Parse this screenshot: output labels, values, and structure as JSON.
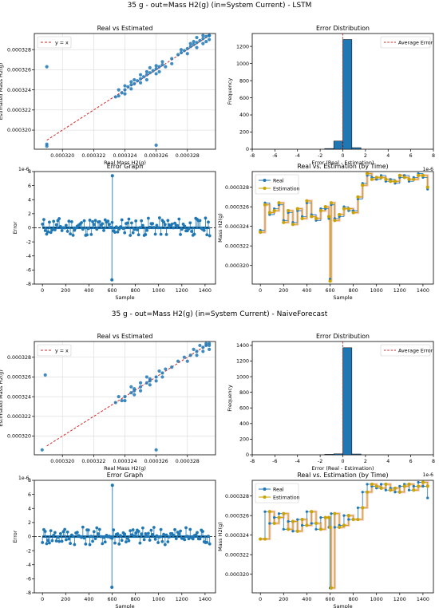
{
  "figures": [
    {
      "title": "35 g - out=Mass H2(g) (in=System Current) - LSTM",
      "panels": {
        "scatter": {
          "title": "Real vs Estimated",
          "xlabel": "Real Mass H2(g)",
          "ylabel": "Estimated Mass H2(g)",
          "legend": "y = x"
        },
        "hist": {
          "title": "Error Distribution",
          "xlabel": "Error (Real - Estimation)",
          "ylabel": "Frequency",
          "legend": "Average Error",
          "xexp": "1e-6"
        },
        "stem": {
          "title": "Error Graph",
          "xlabel": "Sample",
          "ylabel": "Error",
          "yexp": "1e-6"
        },
        "time": {
          "title": "Real vs. Estimation (by Time)",
          "xlabel": "Sample",
          "ylabel": "Mass H2(g)",
          "legend": [
            "Real",
            "Estimation"
          ]
        }
      }
    },
    {
      "title": "35 g - out=Mass H2(g) (in=System Current) - NaiveForecast",
      "panels": {
        "scatter": {
          "title": "Real vs Estimated",
          "xlabel": "Real Mass H2(g)",
          "ylabel": "Estimated Mass H2(g)",
          "legend": "y = x"
        },
        "hist": {
          "title": "Error Distribution",
          "xlabel": "Error (Real - Estimation)",
          "ylabel": "Frequency",
          "legend": "Average Error",
          "xexp": "1e-6"
        },
        "stem": {
          "title": "Error Graph",
          "xlabel": "Sample",
          "ylabel": "Error",
          "yexp": "1e-6"
        },
        "time": {
          "title": "Real vs. Estimation (by Time)",
          "xlabel": "Sample",
          "ylabel": "Mass H2(g)",
          "legend": [
            "Real",
            "Estimation"
          ]
        }
      }
    }
  ],
  "colors": {
    "blue": "#1f77b4",
    "orange": "#d62728",
    "gold": "#c8a400",
    "gridline": "#d9d9d9"
  },
  "chart_data": [
    {
      "type": "scatter",
      "title": "Real vs Estimated",
      "xlabel": "Real Mass H2(g)",
      "ylabel": "Estimated Mass H2(g)",
      "xlim": [
        0.0003182,
        0.0003298
      ],
      "ylim": [
        0.0003181,
        0.0003296
      ],
      "xticks": [
        "0.000320",
        "0.000322",
        "0.000324",
        "0.000326",
        "0.000328"
      ],
      "yticks": [
        "0.000320",
        "0.000322",
        "0.000324",
        "0.000326",
        "0.000328"
      ],
      "reference_line": "y = x",
      "points": [
        [
          0.000319,
          0.0003184
        ],
        [
          0.000319,
          0.0003186
        ],
        [
          0.000319,
          0.0003263
        ],
        [
          0.000326,
          0.0003185
        ],
        [
          0.0003234,
          0.0003233
        ],
        [
          0.0003236,
          0.0003234
        ],
        [
          0.0003238,
          0.0003237
        ],
        [
          0.000324,
          0.000324
        ],
        [
          0.0003242,
          0.0003243
        ],
        [
          0.0003244,
          0.0003245
        ],
        [
          0.0003246,
          0.0003246
        ],
        [
          0.0003248,
          0.0003249
        ],
        [
          0.000325,
          0.0003251
        ],
        [
          0.0003252,
          0.0003253
        ],
        [
          0.0003254,
          0.0003255
        ],
        [
          0.0003256,
          0.0003257
        ],
        [
          0.0003258,
          0.0003259
        ],
        [
          0.000326,
          0.0003261
        ],
        [
          0.0003262,
          0.0003263
        ],
        [
          0.0003264,
          0.0003265
        ],
        [
          0.000327,
          0.0003271
        ],
        [
          0.0003274,
          0.0003275
        ],
        [
          0.0003276,
          0.0003277
        ],
        [
          0.0003278,
          0.0003279
        ],
        [
          0.000328,
          0.0003281
        ],
        [
          0.0003282,
          0.0003283
        ],
        [
          0.0003284,
          0.0003285
        ],
        [
          0.0003286,
          0.0003287
        ],
        [
          0.0003288,
          0.0003289
        ],
        [
          0.000329,
          0.0003291
        ],
        [
          0.0003292,
          0.0003293
        ],
        [
          0.0003294,
          0.0003294
        ],
        [
          0.000324,
          0.0003236
        ],
        [
          0.000324,
          0.0003244
        ],
        [
          0.0003244,
          0.0003241
        ],
        [
          0.0003246,
          0.000325
        ],
        [
          0.000325,
          0.0003247
        ],
        [
          0.000325,
          0.0003255
        ],
        [
          0.0003254,
          0.000325
        ],
        [
          0.0003256,
          0.0003262
        ],
        [
          0.000326,
          0.0003256
        ],
        [
          0.000326,
          0.0003264
        ],
        [
          0.0003262,
          0.0003258
        ],
        [
          0.0003264,
          0.0003268
        ],
        [
          0.000328,
          0.0003276
        ],
        [
          0.0003282,
          0.0003286
        ],
        [
          0.0003286,
          0.0003282
        ],
        [
          0.0003286,
          0.0003292
        ],
        [
          0.000329,
          0.0003286
        ],
        [
          0.000329,
          0.0003294
        ],
        [
          0.0003292,
          0.0003288
        ],
        [
          0.0003294,
          0.000329
        ],
        [
          0.0003294,
          0.0003294
        ],
        [
          0.0003236,
          0.000324
        ],
        [
          0.0003244,
          0.0003248
        ],
        [
          0.0003254,
          0.0003258
        ],
        [
          0.0003266,
          0.0003263
        ],
        [
          0.000327,
          0.0003266
        ],
        [
          0.0003276,
          0.000328
        ],
        [
          0.0003284,
          0.0003288
        ]
      ]
    },
    {
      "type": "bar",
      "title": "Error Distribution",
      "xlabel": "Error (Real - Estimation)",
      "ylabel": "Frequency",
      "xlim": [
        -8,
        8
      ],
      "ylim": [
        0,
        1350
      ],
      "xticks": [
        -8,
        -6,
        -4,
        -2,
        0,
        2,
        4,
        6,
        8
      ],
      "yticks": [
        0,
        200,
        400,
        600,
        800,
        1000,
        1200
      ],
      "bins": [
        [
          -1.6,
          -0.8,
          8
        ],
        [
          -0.8,
          0,
          95
        ],
        [
          0,
          0.8,
          1280
        ],
        [
          0.8,
          1.6,
          18
        ]
      ],
      "average_error": 0.0
    },
    {
      "type": "scatter",
      "title": "Error Graph",
      "xlabel": "Sample",
      "ylabel": "Error",
      "xlim": [
        -70,
        1490
      ],
      "ylim": [
        -8,
        8
      ],
      "xticks": [
        0,
        200,
        400,
        600,
        800,
        1000,
        1200,
        1400
      ],
      "yticks": [
        -8,
        -6,
        -4,
        -2,
        0,
        2,
        4,
        6,
        8
      ],
      "spikes": [
        [
          598,
          -7.4
        ],
        [
          602,
          7.4
        ]
      ]
    },
    {
      "type": "line",
      "title": "Real vs. Estimation (by Time)",
      "xlabel": "Sample",
      "ylabel": "Mass H2(g)",
      "xlim": [
        -70,
        1490
      ],
      "ylim": [
        0.0003181,
        0.0003296
      ],
      "xticks": [
        0,
        200,
        400,
        600,
        800,
        1000,
        1200,
        1400
      ],
      "yticks": [
        "0.000320",
        "0.000322",
        "0.000324",
        "0.000326",
        "0.000328"
      ],
      "series": [
        {
          "name": "Real",
          "x": [
            0,
            40,
            80,
            120,
            160,
            200,
            240,
            280,
            320,
            360,
            400,
            440,
            480,
            520,
            560,
            590,
            600,
            610,
            640,
            680,
            720,
            760,
            800,
            840,
            880,
            920,
            960,
            1000,
            1040,
            1080,
            1120,
            1160,
            1200,
            1240,
            1280,
            1320,
            1360,
            1400,
            1440
          ],
          "y": [
            0.0003236,
            0.0003264,
            0.0003252,
            0.0003258,
            0.0003262,
            0.0003246,
            0.0003254,
            0.0003244,
            0.0003256,
            0.000325,
            0.0003264,
            0.0003252,
            0.0003246,
            0.0003258,
            0.0003258,
            0.0003248,
            0.0003186,
            0.0003262,
            0.0003248,
            0.000325,
            0.000326,
            0.0003256,
            0.0003256,
            0.0003268,
            0.0003284,
            0.0003292,
            0.000329,
            0.0003288,
            0.0003292,
            0.0003286,
            0.0003288,
            0.0003284,
            0.000329,
            0.0003292,
            0.0003286,
            0.000329,
            0.0003294,
            0.000329,
            0.0003278
          ]
        },
        {
          "name": "Estimation",
          "x": [
            0,
            40,
            80,
            120,
            160,
            200,
            240,
            280,
            320,
            360,
            400,
            440,
            480,
            520,
            560,
            590,
            600,
            610,
            640,
            680,
            720,
            760,
            800,
            840,
            880,
            920,
            960,
            1000,
            1040,
            1080,
            1120,
            1160,
            1200,
            1240,
            1280,
            1320,
            1360,
            1400,
            1440
          ],
          "y": [
            0.0003234,
            0.0003262,
            0.0003254,
            0.0003256,
            0.0003264,
            0.0003244,
            0.0003256,
            0.0003242,
            0.0003258,
            0.0003248,
            0.0003266,
            0.000325,
            0.0003248,
            0.0003256,
            0.000326,
            0.000325,
            0.0003184,
            0.0003264,
            0.0003246,
            0.0003252,
            0.0003258,
            0.0003258,
            0.0003254,
            0.000327,
            0.0003282,
            0.0003294,
            0.0003288,
            0.000329,
            0.000329,
            0.0003288,
            0.0003286,
            0.0003286,
            0.0003292,
            0.000329,
            0.0003288,
            0.0003288,
            0.0003292,
            0.0003292,
            0.000328
          ]
        }
      ]
    },
    {
      "type": "scatter",
      "title": "Real vs Estimated",
      "xlabel": "Real Mass H2(g)",
      "ylabel": "Estimated Mass H2(g)",
      "xlim": [
        0.0003182,
        0.0003298
      ],
      "ylim": [
        0.0003181,
        0.0003296
      ],
      "xticks": [
        "0.000320",
        "0.000322",
        "0.000324",
        "0.000326",
        "0.000328"
      ],
      "yticks": [
        "0.000320",
        "0.000322",
        "0.000324",
        "0.000326",
        "0.000328"
      ],
      "reference_line": "y = x",
      "points": [
        [
          0.0003187,
          0.0003186
        ],
        [
          0.0003189,
          0.0003262
        ],
        [
          0.000326,
          0.0003186
        ],
        [
          0.0003234,
          0.0003234
        ],
        [
          0.0003238,
          0.0003236
        ],
        [
          0.000324,
          0.000324
        ],
        [
          0.0003244,
          0.0003244
        ],
        [
          0.0003246,
          0.0003248
        ],
        [
          0.000325,
          0.000325
        ],
        [
          0.0003254,
          0.0003254
        ],
        [
          0.0003256,
          0.0003258
        ],
        [
          0.000326,
          0.000326
        ],
        [
          0.0003264,
          0.0003264
        ],
        [
          0.000327,
          0.000327
        ],
        [
          0.0003274,
          0.0003276
        ],
        [
          0.0003278,
          0.000328
        ],
        [
          0.0003282,
          0.0003282
        ],
        [
          0.0003286,
          0.0003286
        ],
        [
          0.000329,
          0.000329
        ],
        [
          0.0003292,
          0.0003292
        ],
        [
          0.0003294,
          0.0003294
        ],
        [
          0.000324,
          0.0003236
        ],
        [
          0.0003236,
          0.000324
        ],
        [
          0.0003246,
          0.0003242
        ],
        [
          0.0003244,
          0.000325
        ],
        [
          0.000325,
          0.0003246
        ],
        [
          0.000325,
          0.0003254
        ],
        [
          0.0003256,
          0.0003252
        ],
        [
          0.0003254,
          0.000326
        ],
        [
          0.000326,
          0.0003256
        ],
        [
          0.0003262,
          0.0003266
        ],
        [
          0.0003264,
          0.000326
        ],
        [
          0.0003266,
          0.0003268
        ],
        [
          0.000328,
          0.0003276
        ],
        [
          0.0003284,
          0.0003288
        ],
        [
          0.0003286,
          0.0003282
        ],
        [
          0.0003288,
          0.0003292
        ],
        [
          0.000329,
          0.0003286
        ],
        [
          0.0003292,
          0.0003294
        ],
        [
          0.0003294,
          0.0003288
        ],
        [
          0.0003294,
          0.0003292
        ],
        [
          0.0003246,
          0.0003246
        ],
        [
          0.0003256,
          0.0003256
        ]
      ]
    },
    {
      "type": "bar",
      "title": "Error Distribution",
      "xlabel": "Error (Real - Estimation)",
      "ylabel": "Frequency",
      "xlim": [
        -8,
        8
      ],
      "ylim": [
        0,
        1450
      ],
      "xticks": [
        -8,
        -6,
        -4,
        -2,
        0,
        2,
        4,
        6,
        8
      ],
      "yticks": [
        0,
        200,
        400,
        600,
        800,
        1000,
        1200,
        1400
      ],
      "bins": [
        [
          -1.6,
          -0.8,
          6
        ],
        [
          -0.8,
          0,
          12
        ],
        [
          0,
          0.8,
          1370
        ],
        [
          0.8,
          1.6,
          10
        ]
      ],
      "average_error": 0.0
    },
    {
      "type": "scatter",
      "title": "Error Graph",
      "xlabel": "Sample",
      "ylabel": "Error",
      "xlim": [
        -70,
        1490
      ],
      "ylim": [
        -8,
        8
      ],
      "xticks": [
        0,
        200,
        400,
        600,
        800,
        1000,
        1200,
        1400
      ],
      "yticks": [
        -8,
        -6,
        -4,
        -2,
        0,
        2,
        4,
        6,
        8
      ],
      "spikes": [
        [
          598,
          -7.2
        ],
        [
          602,
          7.3
        ]
      ]
    },
    {
      "type": "line",
      "title": "Real vs. Estimation (by Time)",
      "xlabel": "Sample",
      "ylabel": "Mass H2(g)",
      "xlim": [
        -70,
        1490
      ],
      "ylim": [
        0.0003181,
        0.0003296
      ],
      "xticks": [
        0,
        200,
        400,
        600,
        800,
        1000,
        1200,
        1400
      ],
      "yticks": [
        "0.000320",
        "0.000322",
        "0.000324",
        "0.000326",
        "0.000328"
      ],
      "series": [
        {
          "name": "Real",
          "x": [
            0,
            40,
            80,
            120,
            160,
            200,
            240,
            280,
            320,
            360,
            400,
            440,
            480,
            520,
            560,
            590,
            600,
            610,
            640,
            680,
            720,
            760,
            800,
            840,
            880,
            920,
            960,
            1000,
            1040,
            1080,
            1120,
            1160,
            1200,
            1240,
            1280,
            1320,
            1360,
            1400,
            1440
          ],
          "y": [
            0.0003236,
            0.0003264,
            0.0003252,
            0.0003258,
            0.0003262,
            0.0003246,
            0.0003254,
            0.0003244,
            0.0003256,
            0.000325,
            0.0003264,
            0.0003252,
            0.0003246,
            0.0003258,
            0.0003258,
            0.0003248,
            0.0003186,
            0.0003262,
            0.0003248,
            0.000325,
            0.000326,
            0.0003256,
            0.0003256,
            0.0003268,
            0.0003284,
            0.0003292,
            0.000329,
            0.0003288,
            0.0003292,
            0.0003286,
            0.0003288,
            0.0003284,
            0.000329,
            0.0003292,
            0.0003286,
            0.000329,
            0.0003294,
            0.000329,
            0.0003278
          ]
        },
        {
          "name": "Estimation",
          "x": [
            0,
            40,
            80,
            120,
            160,
            200,
            240,
            280,
            320,
            360,
            400,
            440,
            480,
            520,
            560,
            590,
            600,
            610,
            640,
            680,
            720,
            760,
            800,
            840,
            880,
            920,
            960,
            1000,
            1040,
            1080,
            1120,
            1160,
            1200,
            1240,
            1280,
            1320,
            1360,
            1400,
            1440
          ],
          "y": [
            0.0003236,
            0.0003236,
            0.0003264,
            0.0003252,
            0.0003258,
            0.0003262,
            0.0003246,
            0.0003254,
            0.0003244,
            0.0003256,
            0.000325,
            0.0003264,
            0.0003252,
            0.0003246,
            0.0003258,
            0.0003258,
            0.0003248,
            0.0003186,
            0.0003262,
            0.0003248,
            0.000325,
            0.000326,
            0.0003256,
            0.0003256,
            0.0003268,
            0.0003284,
            0.0003292,
            0.000329,
            0.0003288,
            0.0003292,
            0.0003286,
            0.0003288,
            0.0003284,
            0.000329,
            0.0003292,
            0.0003286,
            0.000329,
            0.0003294,
            0.000329
          ]
        }
      ]
    }
  ]
}
